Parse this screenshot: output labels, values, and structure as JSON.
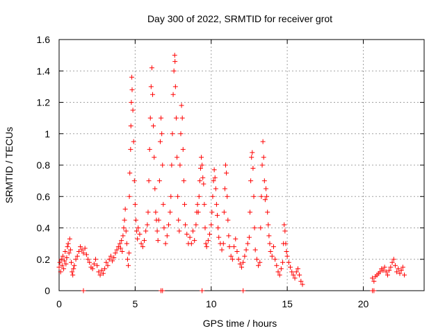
{
  "chart_data": {
    "type": "scatter",
    "title": "Day 300 of 2022, SRMTID for receiver grot",
    "xlabel": "GPS time / hours",
    "ylabel": "SRMTID / TECUs",
    "xlim": [
      0,
      24
    ],
    "ylim": [
      0,
      1.6
    ],
    "xticks": [
      0,
      5,
      10,
      15,
      20
    ],
    "xtick_labels": [
      "0",
      "5",
      "10",
      "15",
      "20"
    ],
    "yticks": [
      0,
      0.2,
      0.4,
      0.6,
      0.8,
      1,
      1.2,
      1.4,
      1.6
    ],
    "ytick_labels": [
      "0",
      "0.2",
      "0.4",
      "0.6",
      "0.8",
      "1",
      "1.2",
      "1.4",
      "1.6"
    ],
    "grid": true,
    "marker": "+",
    "series": [
      {
        "name": "SRMTID",
        "color": "#ff0000",
        "points": [
          [
            0.0,
            0.15
          ],
          [
            0.05,
            0.18
          ],
          [
            0.1,
            0.12
          ],
          [
            0.15,
            0.2
          ],
          [
            0.2,
            0.16
          ],
          [
            0.25,
            0.22
          ],
          [
            0.3,
            0.14
          ],
          [
            0.35,
            0.19
          ],
          [
            0.4,
            0.25
          ],
          [
            0.45,
            0.17
          ],
          [
            0.5,
            0.21
          ],
          [
            0.55,
            0.28
          ],
          [
            0.6,
            0.3
          ],
          [
            0.65,
            0.24
          ],
          [
            0.7,
            0.33
          ],
          [
            0.75,
            0.26
          ],
          [
            0.8,
            0.18
          ],
          [
            0.85,
            0.12
          ],
          [
            0.9,
            0.1
          ],
          [
            0.95,
            0.14
          ],
          [
            1.0,
            0.16
          ],
          [
            1.1,
            0.2
          ],
          [
            1.2,
            0.22
          ],
          [
            1.3,
            0.25
          ],
          [
            1.4,
            0.28
          ],
          [
            1.5,
            0.26
          ],
          [
            1.6,
            0.24
          ],
          [
            1.7,
            0.27
          ],
          [
            1.8,
            0.23
          ],
          [
            1.9,
            0.2
          ],
          [
            2.0,
            0.18
          ],
          [
            2.1,
            0.15
          ],
          [
            2.2,
            0.14
          ],
          [
            2.3,
            0.17
          ],
          [
            2.4,
            0.2
          ],
          [
            2.5,
            0.16
          ],
          [
            2.6,
            0.12
          ],
          [
            2.7,
            0.1
          ],
          [
            2.8,
            0.13
          ],
          [
            2.9,
            0.11
          ],
          [
            3.0,
            0.14
          ],
          [
            3.1,
            0.18
          ],
          [
            3.2,
            0.16
          ],
          [
            3.3,
            0.2
          ],
          [
            3.4,
            0.22
          ],
          [
            3.5,
            0.19
          ],
          [
            3.6,
            0.21
          ],
          [
            3.7,
            0.24
          ],
          [
            3.8,
            0.26
          ],
          [
            3.9,
            0.28
          ],
          [
            4.0,
            0.3
          ],
          [
            4.05,
            0.27
          ],
          [
            4.1,
            0.32
          ],
          [
            4.15,
            0.25
          ],
          [
            4.2,
            0.35
          ],
          [
            4.25,
            0.4
          ],
          [
            4.3,
            0.45
          ],
          [
            4.35,
            0.52
          ],
          [
            4.4,
            0.38
          ],
          [
            4.45,
            0.3
          ],
          [
            4.5,
            0.2
          ],
          [
            4.55,
            0.16
          ],
          [
            4.6,
            0.24
          ],
          [
            4.62,
            0.6
          ],
          [
            4.65,
            0.75
          ],
          [
            4.7,
            0.9
          ],
          [
            4.72,
            1.05
          ],
          [
            4.75,
            1.2
          ],
          [
            4.78,
            1.36
          ],
          [
            4.8,
            1.28
          ],
          [
            4.85,
            1.15
          ],
          [
            4.9,
            0.95
          ],
          [
            4.95,
            0.7
          ],
          [
            5.0,
            0.55
          ],
          [
            5.05,
            0.45
          ],
          [
            5.1,
            0.38
          ],
          [
            5.15,
            0.33
          ],
          [
            5.2,
            0.4
          ],
          [
            5.3,
            0.36
          ],
          [
            5.4,
            0.3
          ],
          [
            5.5,
            0.28
          ],
          [
            5.6,
            0.32
          ],
          [
            5.7,
            0.38
          ],
          [
            5.8,
            0.42
          ],
          [
            5.85,
            0.5
          ],
          [
            5.9,
            0.7
          ],
          [
            5.95,
            0.9
          ],
          [
            6.0,
            1.1
          ],
          [
            6.05,
            1.3
          ],
          [
            6.1,
            1.42
          ],
          [
            6.15,
            1.25
          ],
          [
            6.2,
            1.05
          ],
          [
            6.25,
            0.85
          ],
          [
            6.3,
            0.65
          ],
          [
            6.35,
            0.5
          ],
          [
            6.4,
            0.45
          ],
          [
            6.45,
            0.38
          ],
          [
            6.5,
            0.32
          ],
          [
            6.55,
            0.45
          ],
          [
            6.6,
            0.7
          ],
          [
            6.65,
            0.95
          ],
          [
            6.7,
            1.1
          ],
          [
            6.75,
            1.0
          ],
          [
            6.8,
            0.8
          ],
          [
            6.85,
            0.55
          ],
          [
            6.9,
            0.4
          ],
          [
            7.0,
            0.3
          ],
          [
            7.1,
            0.35
          ],
          [
            7.2,
            0.42
          ],
          [
            7.3,
            0.5
          ],
          [
            7.35,
            0.6
          ],
          [
            7.4,
            0.8
          ],
          [
            7.45,
            1.0
          ],
          [
            7.5,
            1.25
          ],
          [
            7.55,
            1.4
          ],
          [
            7.6,
            1.5
          ],
          [
            7.62,
            1.46
          ],
          [
            7.65,
            1.3
          ],
          [
            7.7,
            1.1
          ],
          [
            7.75,
            0.85
          ],
          [
            7.8,
            0.6
          ],
          [
            7.85,
            0.45
          ],
          [
            7.9,
            0.38
          ],
          [
            7.95,
            0.8
          ],
          [
            8.0,
            1.0
          ],
          [
            8.05,
            1.18
          ],
          [
            8.1,
            1.1
          ],
          [
            8.15,
            0.9
          ],
          [
            8.2,
            0.7
          ],
          [
            8.25,
            0.55
          ],
          [
            8.3,
            0.42
          ],
          [
            8.4,
            0.36
          ],
          [
            8.5,
            0.3
          ],
          [
            8.6,
            0.34
          ],
          [
            8.7,
            0.3
          ],
          [
            8.8,
            0.38
          ],
          [
            8.9,
            0.32
          ],
          [
            9.0,
            0.42
          ],
          [
            9.05,
            0.5
          ],
          [
            9.1,
            0.55
          ],
          [
            9.15,
            0.5
          ],
          [
            9.2,
            0.6
          ],
          [
            9.25,
            0.7
          ],
          [
            9.3,
            0.78
          ],
          [
            9.35,
            0.85
          ],
          [
            9.4,
            0.8
          ],
          [
            9.45,
            0.72
          ],
          [
            9.5,
            0.68
          ],
          [
            9.55,
            0.55
          ],
          [
            9.6,
            0.4
          ],
          [
            9.65,
            0.3
          ],
          [
            9.7,
            0.28
          ],
          [
            9.8,
            0.32
          ],
          [
            9.9,
            0.36
          ],
          [
            10.0,
            0.42
          ],
          [
            10.05,
            0.5
          ],
          [
            10.1,
            0.6
          ],
          [
            10.15,
            0.7
          ],
          [
            10.2,
            0.77
          ],
          [
            10.25,
            0.72
          ],
          [
            10.3,
            0.65
          ],
          [
            10.35,
            0.55
          ],
          [
            10.4,
            0.48
          ],
          [
            10.45,
            0.4
          ],
          [
            10.5,
            0.34
          ],
          [
            10.6,
            0.3
          ],
          [
            10.7,
            0.26
          ],
          [
            10.8,
            0.3
          ],
          [
            10.85,
            0.5
          ],
          [
            10.9,
            0.65
          ],
          [
            10.95,
            0.8
          ],
          [
            11.0,
            0.75
          ],
          [
            11.05,
            0.6
          ],
          [
            11.1,
            0.45
          ],
          [
            11.15,
            0.35
          ],
          [
            11.2,
            0.28
          ],
          [
            11.3,
            0.22
          ],
          [
            11.4,
            0.2
          ],
          [
            11.5,
            0.28
          ],
          [
            11.6,
            0.33
          ],
          [
            11.7,
            0.25
          ],
          [
            11.8,
            0.2
          ],
          [
            11.9,
            0.17
          ],
          [
            12.0,
            0.15
          ],
          [
            12.1,
            0.18
          ],
          [
            12.2,
            0.22
          ],
          [
            12.3,
            0.26
          ],
          [
            12.4,
            0.3
          ],
          [
            12.5,
            0.34
          ],
          [
            12.55,
            0.5
          ],
          [
            12.6,
            0.7
          ],
          [
            12.65,
            0.85
          ],
          [
            12.7,
            0.88
          ],
          [
            12.75,
            0.78
          ],
          [
            12.8,
            0.6
          ],
          [
            12.85,
            0.4
          ],
          [
            12.9,
            0.26
          ],
          [
            13.0,
            0.2
          ],
          [
            13.1,
            0.16
          ],
          [
            13.2,
            0.18
          ],
          [
            13.25,
            0.4
          ],
          [
            13.3,
            0.6
          ],
          [
            13.35,
            0.8
          ],
          [
            13.4,
            0.95
          ],
          [
            13.45,
            0.85
          ],
          [
            13.5,
            0.7
          ],
          [
            13.55,
            0.58
          ],
          [
            13.6,
            0.65
          ],
          [
            13.65,
            0.6
          ],
          [
            13.7,
            0.5
          ],
          [
            13.75,
            0.42
          ],
          [
            13.8,
            0.35
          ],
          [
            13.85,
            0.3
          ],
          [
            13.9,
            0.25
          ],
          [
            14.0,
            0.22
          ],
          [
            14.1,
            0.28
          ],
          [
            14.2,
            0.2
          ],
          [
            14.3,
            0.16
          ],
          [
            14.4,
            0.12
          ],
          [
            14.5,
            0.1
          ],
          [
            14.6,
            0.14
          ],
          [
            14.7,
            0.18
          ],
          [
            14.75,
            0.3
          ],
          [
            14.8,
            0.42
          ],
          [
            14.85,
            0.38
          ],
          [
            14.9,
            0.3
          ],
          [
            14.95,
            0.25
          ],
          [
            15.0,
            0.22
          ],
          [
            15.1,
            0.18
          ],
          [
            15.2,
            0.15
          ],
          [
            15.3,
            0.12
          ],
          [
            15.4,
            0.1
          ],
          [
            15.5,
            0.08
          ],
          [
            15.6,
            0.12
          ],
          [
            15.7,
            0.14
          ],
          [
            15.8,
            0.1
          ],
          [
            15.9,
            0.06
          ],
          [
            16.0,
            0.04
          ],
          [
            20.6,
            0.08
          ],
          [
            20.7,
            0.06
          ],
          [
            20.8,
            0.09
          ],
          [
            20.9,
            0.1
          ],
          [
            21.0,
            0.11
          ],
          [
            21.1,
            0.12
          ],
          [
            21.2,
            0.14
          ],
          [
            21.3,
            0.13
          ],
          [
            21.4,
            0.15
          ],
          [
            21.5,
            0.12
          ],
          [
            21.6,
            0.1
          ],
          [
            21.7,
            0.13
          ],
          [
            21.8,
            0.15
          ],
          [
            21.9,
            0.18
          ],
          [
            22.0,
            0.2
          ],
          [
            22.1,
            0.16
          ],
          [
            22.2,
            0.12
          ],
          [
            22.3,
            0.14
          ],
          [
            22.4,
            0.11
          ],
          [
            22.5,
            0.13
          ],
          [
            22.6,
            0.15
          ],
          [
            22.7,
            0.1
          ],
          [
            1.6,
            0.0
          ],
          [
            6.7,
            0.0
          ],
          [
            6.8,
            0.0
          ],
          [
            9.4,
            0.0
          ],
          [
            12.1,
            0.0
          ],
          [
            20.6,
            0.0
          ],
          [
            20.7,
            0.0
          ]
        ]
      }
    ]
  }
}
